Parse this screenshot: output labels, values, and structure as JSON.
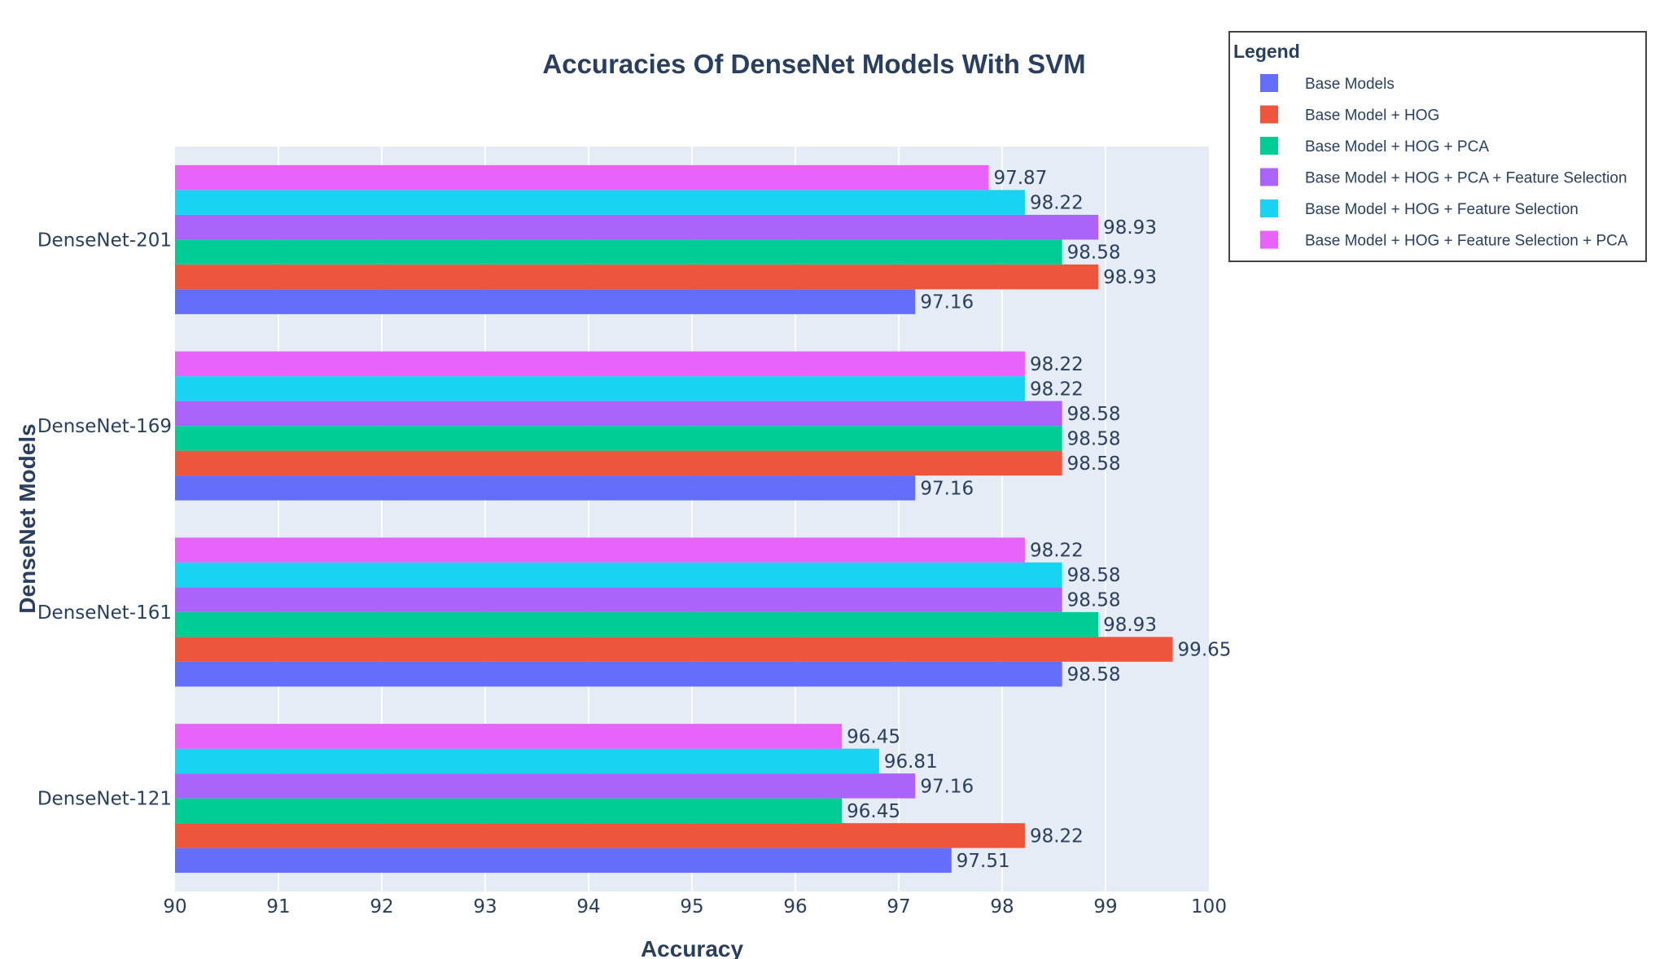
{
  "chart_data": {
    "type": "bar",
    "orientation": "horizontal",
    "title": "Accuracies Of DenseNet Models With SVM",
    "xlabel": "Accuracy",
    "ylabel": "DenseNet Models",
    "xlim": [
      90,
      100
    ],
    "x_ticks": [
      "90",
      "91",
      "92",
      "93",
      "94",
      "95",
      "96",
      "97",
      "98",
      "99",
      "100"
    ],
    "grid": true,
    "legend_title": "Legend",
    "legend_position": "top-right outside",
    "categories": [
      "DenseNet-121",
      "DenseNet-161",
      "DenseNet-169",
      "DenseNet-201"
    ],
    "series": [
      {
        "name": "Base Models",
        "color": "#636efa",
        "values": [
          97.51,
          98.58,
          97.16,
          97.16
        ],
        "labels": [
          "97.51",
          "98.58",
          "97.16",
          "97.16"
        ]
      },
      {
        "name": "Base Model + HOG",
        "color": "#ef553b",
        "values": [
          98.22,
          99.65,
          98.58,
          98.93
        ],
        "labels": [
          "98.22",
          "99.65",
          "98.58",
          "98.93"
        ]
      },
      {
        "name": "Base Model + HOG + PCA",
        "color": "#00cc96",
        "values": [
          96.45,
          98.93,
          98.58,
          98.58
        ],
        "labels": [
          "96.45",
          "98.93",
          "98.58",
          "98.58"
        ]
      },
      {
        "name": "Base Model + HOG + PCA + Feature Selection",
        "color": "#ab63fa",
        "values": [
          97.16,
          98.58,
          98.58,
          98.93
        ],
        "labels": [
          "97.16",
          "98.58",
          "98.58",
          "98.93"
        ]
      },
      {
        "name": "Base Model + HOG + Feature Selection",
        "color": "#19d3f3",
        "values": [
          96.81,
          98.58,
          98.22,
          98.22
        ],
        "labels": [
          "96.81",
          "98.58",
          "98.22",
          "98.22"
        ]
      },
      {
        "name": "Base Model + HOG + Feature Selection + PCA",
        "color": "#e763fa",
        "values": [
          96.45,
          98.22,
          98.22,
          97.87
        ],
        "labels": [
          "96.45",
          "98.22",
          "98.22",
          "97.87"
        ]
      }
    ]
  }
}
